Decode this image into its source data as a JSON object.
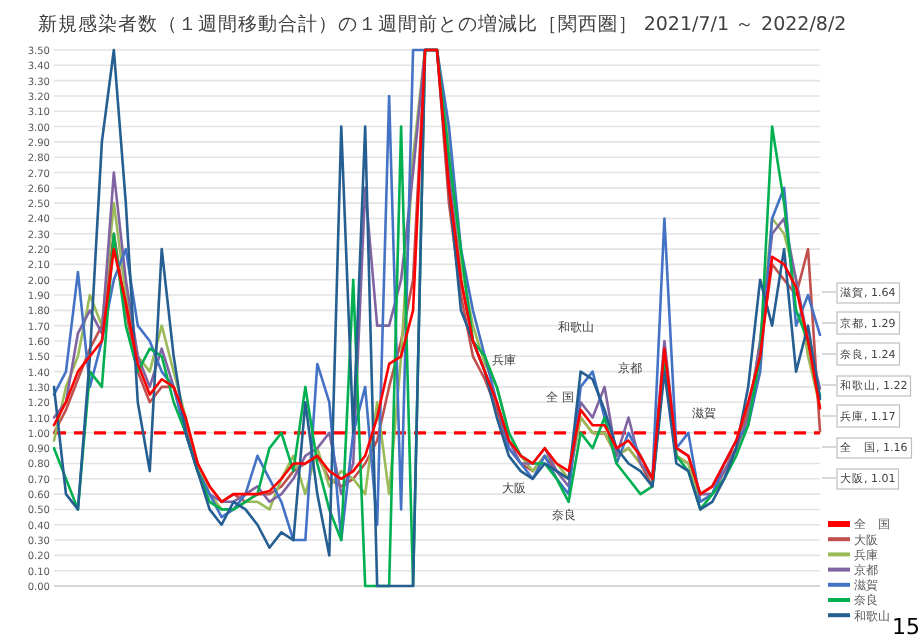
{
  "chart_data": {
    "type": "line",
    "title": "新規感染者数（１週間移動合計）の１週間前との増減比［関西圏］ 2021/7/1 ～ 2022/8/2",
    "categories": [
      null,
      null,
      null,
      null,
      null,
      null,
      null,
      null,
      null,
      null,
      null,
      null,
      null,
      null,
      null,
      null,
      null,
      null,
      null,
      null,
      null,
      null,
      null,
      null,
      null,
      null,
      null,
      null,
      null,
      null,
      null,
      null,
      null,
      null,
      null,
      null,
      null,
      null,
      null,
      null,
      null,
      null,
      null,
      null,
      null,
      null,
      null,
      null,
      null,
      null,
      null,
      null,
      null,
      null,
      null,
      null,
      null,
      null,
      null,
      null,
      null,
      null,
      null,
      null,
      null
    ],
    "ylim": [
      0,
      3.5
    ],
    "yticks": [
      {
        "value": 0,
        "label": "0.00"
      },
      {
        "value": 0.1,
        "label": "0.10"
      },
      {
        "value": 0.2,
        "label": "0.20"
      },
      {
        "value": 0.3,
        "label": "0.30"
      },
      {
        "value": 0.4,
        "label": "0.40"
      },
      {
        "value": 0.5,
        "label": "0.50"
      },
      {
        "value": 0.6,
        "label": "0.60"
      },
      {
        "value": 0.7,
        "label": "0.70"
      },
      {
        "value": 0.8,
        "label": "0.80"
      },
      {
        "value": 0.9,
        "label": "0.90"
      },
      {
        "value": 1,
        "label": "1.00"
      },
      {
        "value": 1.1,
        "label": "1.10"
      },
      {
        "value": 1.2,
        "label": "1.20"
      },
      {
        "value": 1.3,
        "label": "1.30"
      },
      {
        "value": 1.4,
        "label": "1.40"
      },
      {
        "value": 1.5,
        "label": "1.50"
      },
      {
        "value": 1.6,
        "label": "1.60"
      },
      {
        "value": 1.7,
        "label": "1.70"
      },
      {
        "value": 1.8,
        "label": "1.80"
      },
      {
        "value": 1.9,
        "label": "1.90"
      },
      {
        "value": 2,
        "label": "2.00"
      },
      {
        "value": 2.1,
        "label": "2.10"
      },
      {
        "value": 2.2,
        "label": "2.20"
      },
      {
        "value": 2.3,
        "label": "2.30"
      },
      {
        "value": 2.4,
        "label": "2.40"
      },
      {
        "value": 2.5,
        "label": "2.50"
      },
      {
        "value": 2.6,
        "label": "2.60"
      },
      {
        "value": 2.7,
        "label": "2.70"
      },
      {
        "value": 2.8,
        "label": "2.80"
      },
      {
        "value": 2.9,
        "label": "2.90"
      },
      {
        "value": 3,
        "label": "3.00"
      },
      {
        "value": 3.1,
        "label": "3.10"
      },
      {
        "value": 3.2,
        "label": "3.20"
      },
      {
        "value": 3.3,
        "label": "3.30"
      },
      {
        "value": 3.4,
        "label": "3.40"
      },
      {
        "value": 3.5,
        "label": "3.50"
      }
    ],
    "tick_labels": "y",
    "grid": "y",
    "legend": "bottom right",
    "marker": "none",
    "line_style": "solid",
    "series": [
      {
        "name": "全　国",
        "color": "#ff0000",
        "values": [
          1.05,
          1.2,
          1.4,
          1.5,
          1.6,
          2.2,
          1.85,
          1.45,
          1.25,
          1.35,
          1.3,
          1.1,
          0.8,
          0.65,
          0.55,
          0.6,
          0.6,
          0.6,
          0.62,
          0.7,
          0.8,
          0.8,
          0.85,
          0.75,
          0.7,
          0.75,
          0.85,
          1.1,
          1.45,
          1.5,
          1.8,
          3.5,
          3.5,
          2.6,
          2.0,
          1.6,
          1.4,
          1.2,
          0.95,
          0.85,
          0.8,
          0.9,
          0.8,
          0.75,
          1.15,
          1.05,
          1.05,
          0.9,
          0.95,
          0.85,
          0.7,
          1.55,
          0.9,
          0.85,
          0.6,
          0.65,
          0.8,
          0.95,
          1.2,
          1.5,
          2.15,
          2.1,
          1.95,
          1.6,
          1.16
        ]
      },
      {
        "name": "大阪",
        "color": "#c0504d",
        "values": [
          1.0,
          1.15,
          1.35,
          1.55,
          1.7,
          2.3,
          1.8,
          1.4,
          1.2,
          1.3,
          1.3,
          1.05,
          0.8,
          0.65,
          0.55,
          0.6,
          0.55,
          0.6,
          0.6,
          0.65,
          0.75,
          0.8,
          0.85,
          0.7,
          0.65,
          0.7,
          0.8,
          0.95,
          1.3,
          1.6,
          2.0,
          3.5,
          3.5,
          2.5,
          1.9,
          1.5,
          1.35,
          1.15,
          0.9,
          0.8,
          0.75,
          0.85,
          0.75,
          0.7,
          1.1,
          1.0,
          1.0,
          0.85,
          0.9,
          0.8,
          0.65,
          1.5,
          0.85,
          0.8,
          0.6,
          0.65,
          0.8,
          0.9,
          1.15,
          1.55,
          2.1,
          2.0,
          1.9,
          2.2,
          1.01
        ]
      },
      {
        "name": "兵庫",
        "color": "#9bbb59",
        "values": [
          0.95,
          1.3,
          1.5,
          1.9,
          1.7,
          2.5,
          1.9,
          1.5,
          1.4,
          1.7,
          1.4,
          1.1,
          0.8,
          0.6,
          0.5,
          0.5,
          0.55,
          0.55,
          0.5,
          0.7,
          0.85,
          0.6,
          0.9,
          0.65,
          0.75,
          0.7,
          0.6,
          1.2,
          0.6,
          1.5,
          2.8,
          3.5,
          3.5,
          2.9,
          2.1,
          1.7,
          1.45,
          1.3,
          1.0,
          0.85,
          0.75,
          0.85,
          0.8,
          0.7,
          1.1,
          1.0,
          1.0,
          0.85,
          0.9,
          0.8,
          0.7,
          1.5,
          0.85,
          0.8,
          0.55,
          0.6,
          0.75,
          0.9,
          1.1,
          1.6,
          2.4,
          2.3,
          2.0,
          1.5,
          1.17
        ]
      },
      {
        "name": "京都",
        "color": "#8064a2",
        "values": [
          1.1,
          1.2,
          1.65,
          1.8,
          1.65,
          2.7,
          2.0,
          1.5,
          1.3,
          1.55,
          1.3,
          1.0,
          0.75,
          0.6,
          0.55,
          0.55,
          0.6,
          0.65,
          0.55,
          0.6,
          0.7,
          0.85,
          0.9,
          1.0,
          0.6,
          0.8,
          2.6,
          1.7,
          1.7,
          2.0,
          2.7,
          3.5,
          3.5,
          2.7,
          2.0,
          1.6,
          1.4,
          1.2,
          0.95,
          0.8,
          0.8,
          0.9,
          0.75,
          0.65,
          1.2,
          1.1,
          1.3,
          0.85,
          1.1,
          0.8,
          0.7,
          1.6,
          0.9,
          0.85,
          0.6,
          0.6,
          0.75,
          0.9,
          1.1,
          1.6,
          2.3,
          2.4,
          2.0,
          1.6,
          1.29
        ]
      },
      {
        "name": "滋賀",
        "color": "#4472c4",
        "values": [
          1.25,
          1.4,
          2.05,
          1.3,
          1.6,
          2.0,
          2.2,
          1.7,
          1.6,
          1.4,
          1.3,
          1.0,
          0.75,
          0.6,
          0.45,
          0.5,
          0.6,
          0.85,
          0.7,
          0.55,
          0.3,
          0.3,
          1.45,
          1.2,
          0.3,
          1.0,
          1.3,
          0.4,
          3.2,
          0.5,
          3.5,
          3.5,
          3.5,
          3.0,
          2.2,
          1.8,
          1.5,
          1.2,
          0.9,
          0.8,
          0.7,
          0.85,
          0.7,
          0.6,
          1.3,
          1.4,
          1.1,
          0.8,
          1.0,
          0.85,
          0.7,
          2.4,
          0.9,
          1.0,
          0.55,
          0.6,
          0.8,
          0.95,
          1.05,
          1.4,
          2.4,
          2.6,
          1.7,
          1.9,
          1.64
        ]
      },
      {
        "name": "奈良",
        "color": "#00b050",
        "values": [
          0.9,
          0.7,
          0.5,
          1.4,
          1.3,
          2.3,
          1.7,
          1.4,
          1.55,
          1.5,
          1.2,
          1.0,
          0.75,
          0.55,
          0.5,
          0.5,
          0.55,
          0.6,
          0.9,
          1.0,
          0.75,
          1.3,
          0.8,
          0.5,
          0.3,
          2.0,
          0.0,
          0.0,
          0.0,
          3.0,
          0.0,
          3.5,
          3.5,
          2.8,
          2.2,
          1.6,
          1.5,
          1.3,
          1.0,
          0.85,
          0.8,
          0.8,
          0.7,
          0.55,
          1.0,
          0.9,
          1.1,
          0.8,
          0.7,
          0.6,
          0.65,
          1.45,
          0.85,
          0.75,
          0.5,
          0.6,
          0.7,
          0.85,
          1.05,
          1.5,
          3.0,
          2.5,
          1.8,
          1.6,
          1.24
        ]
      },
      {
        "name": "和歌山",
        "color": "#255e91",
        "values": [
          1.3,
          0.6,
          0.5,
          1.5,
          2.9,
          3.5,
          2.5,
          1.2,
          0.75,
          2.2,
          1.5,
          1.0,
          0.75,
          0.5,
          0.4,
          0.55,
          0.5,
          0.4,
          0.25,
          0.35,
          0.3,
          1.2,
          0.6,
          0.2,
          3.0,
          1.0,
          3.0,
          0.0,
          0.0,
          0.0,
          0.0,
          3.5,
          3.5,
          2.6,
          1.8,
          1.6,
          1.4,
          1.1,
          0.85,
          0.75,
          0.7,
          0.8,
          0.75,
          0.7,
          1.4,
          1.35,
          1.15,
          0.9,
          0.8,
          0.75,
          0.65,
          1.4,
          0.8,
          0.75,
          0.5,
          0.55,
          0.7,
          0.9,
          1.3,
          2.0,
          1.7,
          2.2,
          1.4,
          1.7,
          1.22
        ]
      }
    ],
    "ref_lines": [
      {
        "axis": "y",
        "value": 1.0,
        "color": "#ff0000",
        "line_style": "dashed"
      }
    ],
    "annotations": [
      "兵庫",
      "和歌山",
      "京都",
      "全 国",
      "滋賀",
      "大阪",
      "奈良",
      "滋賀, 1.64",
      "京都, 1.29",
      "奈良, 1.24",
      "和歌山, 1.22",
      "兵庫, 1.17",
      "全　国, 1.16",
      "大阪, 1.01",
      "15"
    ]
  }
}
